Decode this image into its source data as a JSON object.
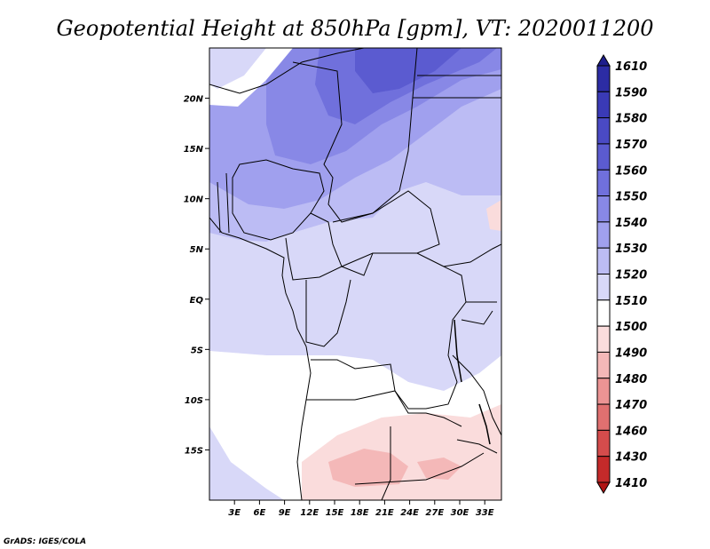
{
  "title": "Geopotential Height at 850hPa [gpm], VT: 2020011200",
  "footer": "GrADS: IGES/COLA",
  "map": {
    "lon_range": [
      0,
      35
    ],
    "lat_range": [
      -20,
      25
    ],
    "x_ticks": [
      "3E",
      "6E",
      "9E",
      "12E",
      "15E",
      "18E",
      "21E",
      "24E",
      "27E",
      "30E",
      "33E"
    ],
    "x_tick_values": [
      3,
      6,
      9,
      12,
      15,
      18,
      21,
      24,
      27,
      30,
      33
    ],
    "y_ticks": [
      "20N",
      "15N",
      "10N",
      "5N",
      "EQ",
      "5S",
      "10S",
      "15S"
    ],
    "y_tick_values": [
      20,
      15,
      10,
      5,
      0,
      -5,
      -10,
      -15
    ]
  },
  "colorbar": {
    "levels": [
      "1610",
      "1590",
      "1580",
      "1570",
      "1560",
      "1550",
      "1540",
      "1530",
      "1520",
      "1510",
      "1500",
      "1490",
      "1480",
      "1470",
      "1460",
      "1430",
      "1410"
    ],
    "colors": [
      "#1e1e8c",
      "#2c2ca4",
      "#3a3ab6",
      "#4a4ac4",
      "#5b5bd0",
      "#7070dc",
      "#8888e6",
      "#a0a0ee",
      "#bcbcf4",
      "#d8d8f8",
      "#ffffff",
      "#fadcdc",
      "#f4b8b8",
      "#ec9494",
      "#e07070",
      "#d44c4c",
      "#c42a2a",
      "#b01414"
    ]
  }
}
